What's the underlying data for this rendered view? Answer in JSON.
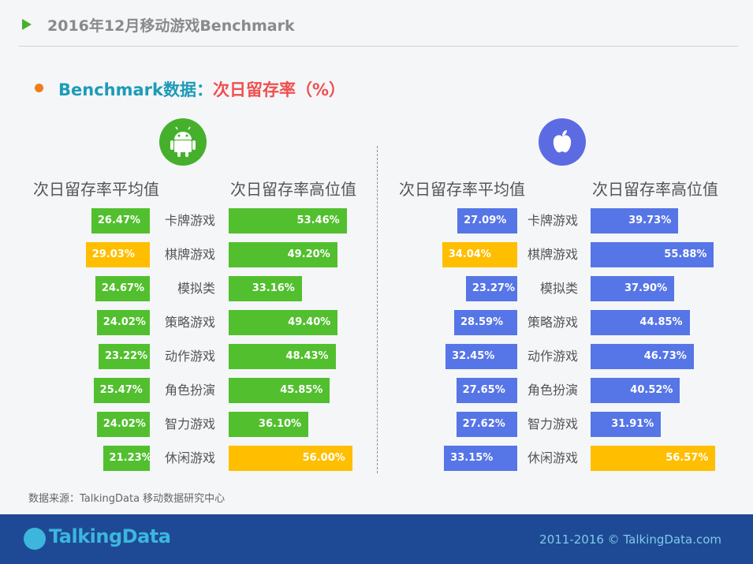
{
  "header": {
    "title": "2016年12月移动游戏Benchmark"
  },
  "subtitle": {
    "part1": "Benchmark数据：",
    "part2": "次日留存率（%）"
  },
  "columns": {
    "android_avg": "次日留存率平均值",
    "android_high": "次日留存率高位值",
    "ios_avg": "次日留存率平均值",
    "ios_high": "次日留存率高位值"
  },
  "categories": [
    "卡牌游戏",
    "棋牌游戏",
    "模拟类",
    "策略游戏",
    "动作游戏",
    "角色扮演",
    "智力游戏",
    "休闲游戏"
  ],
  "labels": {
    "android_avg": [
      "26.47%",
      "29.03%",
      "24.67%",
      "24.02%",
      "23.22%",
      "25.47%",
      "24.02%",
      "21.23%"
    ],
    "android_high": [
      "53.46%",
      "49.20%",
      "33.16%",
      "49.40%",
      "48.43%",
      "45.85%",
      "36.10%",
      "56.00%"
    ],
    "ios_avg": [
      "27.09%",
      "34.04%",
      "23.27%",
      "28.59%",
      "32.45%",
      "27.65%",
      "27.62%",
      "33.15%"
    ],
    "ios_high": [
      "39.73%",
      "55.88%",
      "37.90%",
      "44.85%",
      "46.73%",
      "40.52%",
      "31.91%",
      "56.57%"
    ]
  },
  "source": "数据来源：TalkingData 移动数据研究中心",
  "footer": {
    "logo": "TalkingData",
    "copyright": "2011-2016 © TalkingData.com"
  },
  "colors": {
    "android": "#52bf2e",
    "ios": "#5675e6",
    "highlight": "#ffbe00"
  },
  "icons": {
    "android": "android-icon",
    "ios": "apple-icon"
  },
  "chart_data": [
    {
      "type": "bar",
      "categories": [
        "卡牌游戏",
        "棋牌游戏",
        "模拟类",
        "策略游戏",
        "动作游戏",
        "角色扮演",
        "智力游戏",
        "休闲游戏"
      ],
      "series": [
        {
          "name": "次日留存率平均值",
          "values": [
            26.47,
            29.03,
            24.67,
            24.02,
            23.22,
            25.47,
            24.02,
            21.23
          ],
          "highlight_index": 1
        },
        {
          "name": "次日留存率高位值",
          "values": [
            53.46,
            49.2,
            33.16,
            49.4,
            48.43,
            45.85,
            36.1,
            56.0
          ],
          "highlight_index": 7
        }
      ]
    },
    {
      "type": "bar",
      "categories": [
        "卡牌游戏",
        "棋牌游戏",
        "模拟类",
        "策略游戏",
        "动作游戏",
        "角色扮演",
        "智力游戏",
        "休闲游戏"
      ],
      "series": [
        {
          "name": "次日留存率平均值",
          "values": [
            27.09,
            34.04,
            23.27,
            28.59,
            32.45,
            27.65,
            27.62,
            33.15
          ],
          "highlight_index": 1
        },
        {
          "name": "次日留存率高位值",
          "values": [
            39.73,
            55.88,
            37.9,
            44.85,
            46.73,
            40.52,
            31.91,
            56.57
          ],
          "highlight_index": 7
        }
      ]
    }
  ]
}
